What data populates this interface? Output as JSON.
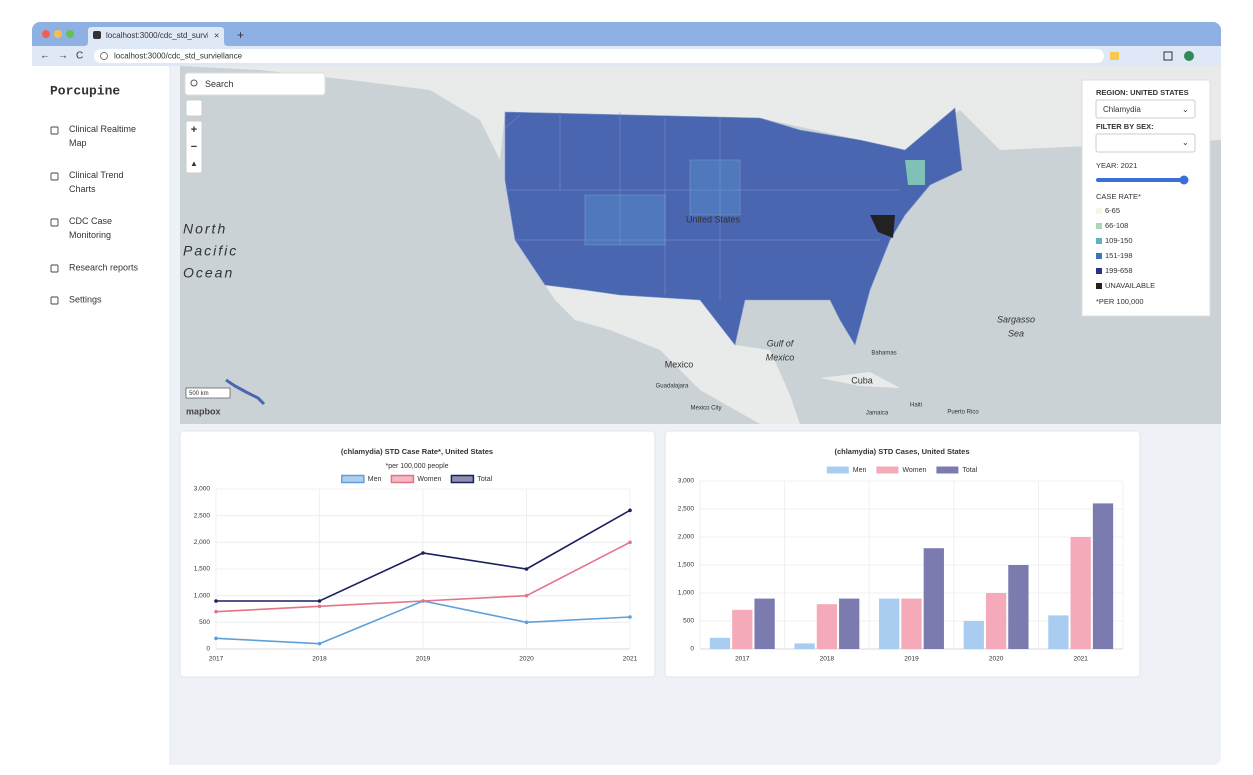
{
  "browser": {
    "tab_title": "localhost:3000/cdc_std_surviellance",
    "url": "localhost:3000/cdc_std_surviellance"
  },
  "sidebar": {
    "brand": "Porcupine",
    "nav": [
      "Clinical Realtime Map",
      "Clinical Trend Charts",
      "CDC Case Monitoring",
      "Research reports",
      "Settings"
    ]
  },
  "map": {
    "search_placeholder": "Search",
    "labels": [
      "United States",
      "Mexico",
      "Gulf of",
      "Mexico",
      "Cuba",
      "Sargasso",
      "Sea",
      "Bahamas",
      "Guadalajara",
      "Mexico City",
      "Haiti",
      "Jamaica",
      "Puerto Rico"
    ],
    "ocean": [
      "North",
      "Pacific",
      "Ocean"
    ],
    "scale": "500 km",
    "attribution": "mapbox",
    "panel": {
      "region": "REGION: UNITED STATES",
      "disease": "Chlamydia",
      "filter": "FILTER BY SEX:",
      "year": "YEAR: 2021",
      "case_rate": "CASE RATE*",
      "bins": [
        {
          "label": "6-65",
          "color": "#f3f8e4"
        },
        {
          "label": "66-108",
          "color": "#a8d8b4"
        },
        {
          "label": "109-150",
          "color": "#5fb3b9"
        },
        {
          "label": "151-198",
          "color": "#3f76b5"
        },
        {
          "label": "199-658",
          "color": "#253583"
        },
        {
          "label": "UNAVAILABLE",
          "color": "#222222"
        }
      ],
      "footnote": "*PER 100,000"
    }
  },
  "chart_data": [
    {
      "type": "line",
      "title": "(chlamydia) STD Case Rate*, United States",
      "subtitle": "*per 100,000 people",
      "categories": [
        "2017",
        "2018",
        "2019",
        "2020",
        "2021"
      ],
      "series": [
        {
          "name": "Men",
          "color": "#5fa0db",
          "values": [
            200,
            100,
            900,
            500,
            600
          ]
        },
        {
          "name": "Women",
          "color": "#e57388",
          "values": [
            700,
            800,
            900,
            1000,
            2000
          ]
        },
        {
          "name": "Total",
          "color": "#1a1f5e",
          "values": [
            900,
            900,
            1800,
            1500,
            2600
          ]
        }
      ],
      "ylim": [
        0,
        3000
      ],
      "yticks": [
        0,
        500,
        {
          "value": 1000,
          "label": "1,000"
        },
        {
          "value": 1500,
          "label": "1,500"
        },
        {
          "value": 2000,
          "label": "2,000"
        },
        {
          "value": 2500,
          "label": "2,500"
        },
        {
          "value": 3000,
          "label": "3,000"
        }
      ],
      "grid": true
    },
    {
      "type": "bar",
      "title": "(chlamydia) STD Cases, United States",
      "categories": [
        "2017",
        "2018",
        "2019",
        "2020",
        "2021"
      ],
      "series": [
        {
          "name": "Men",
          "color": "#a9cdf0",
          "values": [
            200,
            100,
            900,
            500,
            600
          ]
        },
        {
          "name": "Women",
          "color": "#f4aab8",
          "values": [
            700,
            800,
            900,
            1000,
            2000
          ]
        },
        {
          "name": "Total",
          "color": "#7b7bb0",
          "values": [
            900,
            900,
            1800,
            1500,
            2600
          ]
        }
      ],
      "ylim": [
        0,
        3000
      ],
      "yticks": [
        0,
        500,
        {
          "value": 1000,
          "label": "1,000"
        },
        {
          "value": 1500,
          "label": "1,500"
        },
        {
          "value": 2000,
          "label": "2,000"
        },
        {
          "value": 2500,
          "label": "2,500"
        },
        {
          "value": 3000,
          "label": "3,000"
        }
      ],
      "grid": true
    }
  ]
}
